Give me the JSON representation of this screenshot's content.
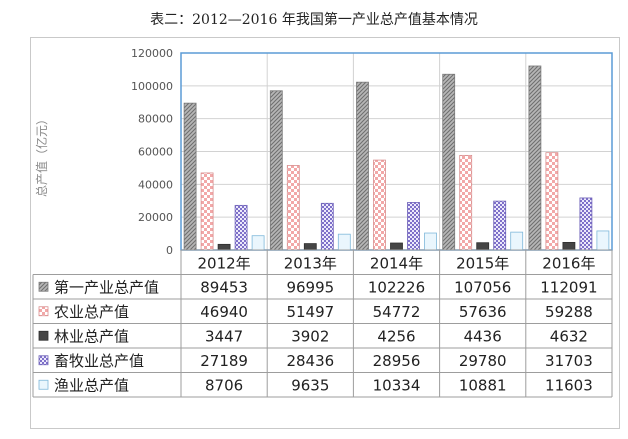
{
  "chart_data": {
    "type": "bar",
    "title": "表二：2012—2016 年我国第一产业总产值基本情况",
    "xlabel": "",
    "ylabel": "总产值（亿元）",
    "ylim": [
      0,
      120000
    ],
    "yticks": [
      0,
      20000,
      40000,
      60000,
      80000,
      100000,
      120000
    ],
    "ytick_labels": [
      "0",
      "20000",
      "40000",
      "60000",
      "80000",
      "100000",
      "120000"
    ],
    "grid": true,
    "legend": "data-table",
    "categories": [
      "2012年",
      "2013年",
      "2014年",
      "2015年",
      "2016年"
    ],
    "series": [
      {
        "name": "第一产业总产值",
        "values": [
          89453,
          96995,
          102226,
          107056,
          112091
        ],
        "color": "#a6a6a6",
        "pattern": "diag"
      },
      {
        "name": "农业总产值",
        "values": [
          46940,
          51497,
          54772,
          57636,
          59288
        ],
        "color": "#f4b6b6",
        "pattern": "check"
      },
      {
        "name": "林业总产值",
        "values": [
          3447,
          3902,
          4256,
          4436,
          4632
        ],
        "color": "#454545",
        "pattern": "solid"
      },
      {
        "name": "畜牧业总产值",
        "values": [
          27189,
          28436,
          28956,
          29780,
          31703
        ],
        "color": "#a59ad6",
        "pattern": "dots"
      },
      {
        "name": "渔业总产值",
        "values": [
          8706,
          9635,
          10334,
          10881,
          11603
        ],
        "color": "#d8eefa",
        "pattern": "light"
      }
    ]
  }
}
